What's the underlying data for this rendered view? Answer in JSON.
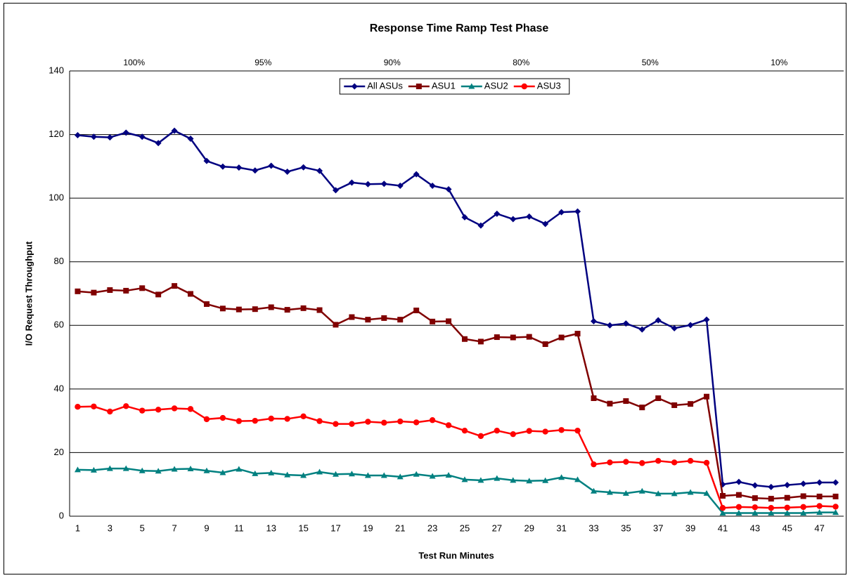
{
  "chart_data": {
    "type": "line",
    "title": "Response Time Ramp Test Phase",
    "x_label": "Test Run Minutes",
    "y_label": "I/O Request Throughput",
    "phases": [
      "100%",
      "95%",
      "90%",
      "80%",
      "50%",
      "10%"
    ],
    "categories": [
      1,
      null,
      3,
      null,
      5,
      null,
      7,
      null,
      9,
      null,
      11,
      null,
      13,
      null,
      15,
      null,
      17,
      null,
      19,
      null,
      21,
      null,
      23,
      null,
      25,
      null,
      27,
      null,
      29,
      null,
      31,
      null,
      33,
      null,
      35,
      null,
      37,
      null,
      39,
      null,
      41,
      null,
      43,
      null,
      45,
      null,
      47,
      null
    ],
    "ylim": [
      0,
      140
    ],
    "yticks": [
      0,
      20,
      40,
      60,
      80,
      100,
      120,
      140
    ],
    "grid": true,
    "legend": "top",
    "series": [
      {
        "name": "All ASUs",
        "color": "#000080",
        "marker": "diamond",
        "values": [
          119.8,
          119.3,
          119.1,
          120.6,
          119.3,
          117.3,
          121.2,
          118.7,
          111.7,
          109.9,
          109.6,
          108.7,
          110.2,
          108.3,
          109.7,
          108.6,
          102.5,
          104.9,
          104.4,
          104.5,
          103.9,
          107.5,
          103.9,
          102.8,
          94.0,
          91.4,
          95.1,
          93.4,
          94.2,
          91.9,
          95.6,
          95.8,
          61.3,
          60.0,
          60.6,
          58.7,
          61.6,
          59.1,
          60.1,
          61.8,
          10.0,
          10.8,
          9.7,
          9.2,
          9.8,
          10.2,
          10.6,
          10.6
        ]
      },
      {
        "name": "ASU1",
        "color": "#800000",
        "marker": "square",
        "values": [
          70.7,
          70.3,
          71.1,
          70.9,
          71.7,
          69.7,
          72.4,
          69.9,
          66.7,
          65.3,
          65.0,
          65.1,
          65.7,
          64.9,
          65.4,
          64.8,
          60.2,
          62.6,
          61.8,
          62.3,
          61.8,
          64.7,
          61.2,
          61.3,
          55.7,
          54.9,
          56.3,
          56.2,
          56.4,
          54.1,
          56.2,
          57.4,
          37.1,
          35.4,
          36.2,
          34.2,
          37.1,
          34.9,
          35.3,
          37.6,
          6.4,
          6.7,
          5.7,
          5.5,
          5.8,
          6.3,
          6.2,
          6.2
        ]
      },
      {
        "name": "ASU2",
        "color": "#008080",
        "marker": "triangle",
        "values": [
          14.6,
          14.5,
          15.0,
          15.0,
          14.3,
          14.2,
          14.8,
          14.9,
          14.3,
          13.7,
          14.8,
          13.4,
          13.6,
          13.0,
          12.8,
          13.9,
          13.2,
          13.3,
          12.8,
          12.8,
          12.4,
          13.2,
          12.6,
          12.9,
          11.5,
          11.3,
          11.9,
          11.3,
          11.1,
          11.2,
          12.2,
          11.5,
          7.9,
          7.5,
          7.2,
          7.9,
          7.1,
          7.1,
          7.5,
          7.2,
          1.0,
          1.0,
          1.0,
          1.0,
          1.0,
          1.0,
          1.2,
          1.2
        ]
      },
      {
        "name": "ASU3",
        "color": "#ff0000",
        "marker": "circle",
        "values": [
          34.4,
          34.5,
          32.9,
          34.6,
          33.2,
          33.5,
          33.9,
          33.7,
          30.5,
          30.9,
          29.9,
          30.0,
          30.7,
          30.6,
          31.4,
          29.9,
          29.0,
          29.0,
          29.7,
          29.4,
          29.8,
          29.5,
          30.2,
          28.6,
          26.9,
          25.2,
          26.9,
          25.8,
          26.8,
          26.6,
          27.1,
          26.9,
          16.3,
          16.9,
          17.1,
          16.7,
          17.4,
          16.9,
          17.4,
          16.8,
          2.6,
          2.9,
          2.8,
          2.6,
          2.7,
          2.9,
          3.2,
          3.0
        ]
      }
    ]
  }
}
